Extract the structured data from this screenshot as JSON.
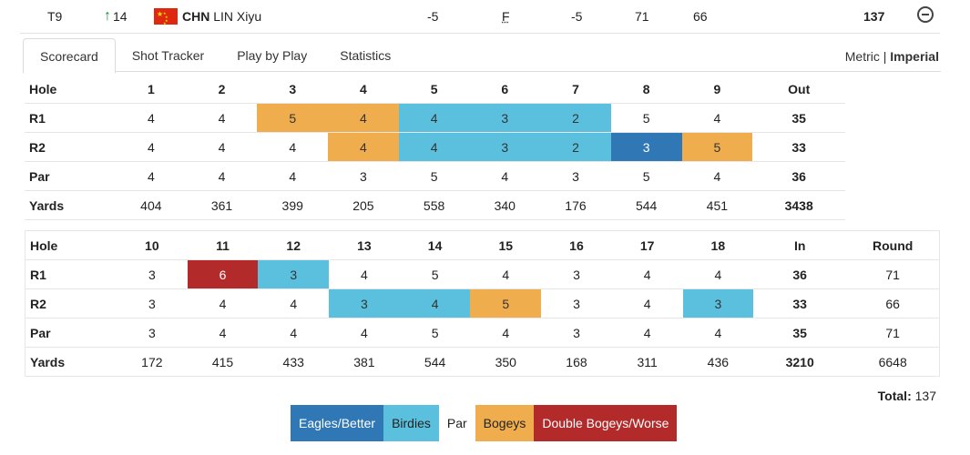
{
  "player": {
    "position": "T9",
    "movement": "14",
    "country": "CHN",
    "name": "LIN Xiyu",
    "to_par": "-5",
    "thru": "F",
    "today": "-5",
    "r1": "71",
    "r2": "66",
    "total": "137"
  },
  "tabs": [
    "Scorecard",
    "Shot Tracker",
    "Play by Play",
    "Statistics"
  ],
  "units": {
    "metric": "Metric",
    "separator": "|",
    "imperial": "Imperial"
  },
  "front": {
    "header": [
      "Hole",
      "1",
      "2",
      "3",
      "4",
      "5",
      "6",
      "7",
      "8",
      "9",
      "Out"
    ],
    "rows": [
      {
        "label": "R1",
        "cells": [
          "4",
          "4",
          "5",
          "4",
          "4",
          "3",
          "2",
          "5",
          "4",
          "35"
        ],
        "styles": [
          "",
          "",
          "bogey",
          "bogey",
          "birdie",
          "birdie",
          "birdie",
          "",
          "",
          ""
        ]
      },
      {
        "label": "R2",
        "cells": [
          "4",
          "4",
          "4",
          "4",
          "4",
          "3",
          "2",
          "3",
          "5",
          "33"
        ],
        "styles": [
          "",
          "",
          "",
          "bogey",
          "birdie",
          "birdie",
          "birdie",
          "eagle",
          "bogey",
          ""
        ]
      },
      {
        "label": "Par",
        "cells": [
          "4",
          "4",
          "4",
          "3",
          "5",
          "4",
          "3",
          "5",
          "4",
          "36"
        ],
        "styles": []
      },
      {
        "label": "Yards",
        "cells": [
          "404",
          "361",
          "399",
          "205",
          "558",
          "340",
          "176",
          "544",
          "451",
          "3438"
        ],
        "styles": []
      }
    ]
  },
  "back": {
    "header": [
      "Hole",
      "10",
      "11",
      "12",
      "13",
      "14",
      "15",
      "16",
      "17",
      "18",
      "In",
      "Round"
    ],
    "rows": [
      {
        "label": "R1",
        "cells": [
          "3",
          "6",
          "3",
          "4",
          "5",
          "4",
          "3",
          "4",
          "4",
          "36",
          "71"
        ],
        "styles": [
          "",
          "dbl",
          "birdie",
          "",
          "",
          "",
          "",
          "",
          "",
          "",
          ""
        ]
      },
      {
        "label": "R2",
        "cells": [
          "3",
          "4",
          "4",
          "3",
          "4",
          "5",
          "3",
          "4",
          "3",
          "33",
          "66"
        ],
        "styles": [
          "",
          "",
          "",
          "birdie",
          "birdie",
          "bogey",
          "",
          "",
          "birdie",
          "",
          ""
        ]
      },
      {
        "label": "Par",
        "cells": [
          "3",
          "4",
          "4",
          "4",
          "5",
          "4",
          "3",
          "4",
          "4",
          "35",
          "71"
        ],
        "styles": []
      },
      {
        "label": "Yards",
        "cells": [
          "172",
          "415",
          "433",
          "381",
          "544",
          "350",
          "168",
          "311",
          "436",
          "3210",
          "6648"
        ],
        "styles": []
      }
    ]
  },
  "total": {
    "label": "Total:",
    "value": "137"
  },
  "legend": {
    "eagle": "Eagles/Better",
    "birdie": "Birdies",
    "par": "Par",
    "bogey": "Bogeys",
    "dbl": "Double Bogeys/Worse"
  },
  "colors": {
    "eagle": "#2f77b5",
    "birdie": "#5ac0de",
    "bogey": "#f0ad4e",
    "dbl": "#b22a2a",
    "movement_up": "#1f8a3a"
  }
}
